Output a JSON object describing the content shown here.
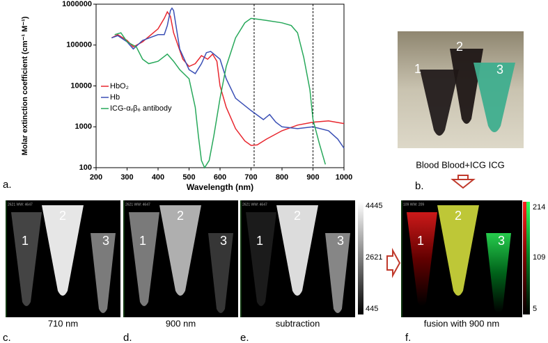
{
  "chart_data": {
    "type": "line",
    "xlabel": "Wavelength (nm)",
    "ylabel": "Molar extinction coefficient (cm⁻¹ M⁻¹)",
    "xlim": [
      200,
      1000
    ],
    "xticks": [
      200,
      300,
      400,
      500,
      600,
      700,
      800,
      900,
      1000
    ],
    "ylim": [
      100,
      1000000
    ],
    "yticks": [
      100,
      1000,
      10000,
      100000,
      1000000
    ],
    "log_y": true,
    "legend": "left",
    "vlines": [
      710,
      900
    ],
    "series": [
      {
        "name": "HbO₂",
        "color": "#e8262e",
        "x": [
          250,
          270,
          300,
          320,
          350,
          400,
          420,
          430,
          440,
          450,
          480,
          500,
          520,
          540,
          560,
          576,
          590,
          600,
          620,
          650,
          680,
          700,
          720,
          750,
          800,
          850,
          900,
          950,
          1000
        ],
        "values": [
          150000,
          180000,
          130000,
          90000,
          120000,
          250000,
          450000,
          650000,
          500000,
          200000,
          45000,
          30000,
          35000,
          55000,
          45000,
          60000,
          40000,
          10000,
          3000,
          900,
          450,
          350,
          360,
          500,
          800,
          1100,
          1300,
          1400,
          1200
        ]
      },
      {
        "name": "Hb",
        "color": "#3a4fb5",
        "x": [
          250,
          270,
          300,
          320,
          350,
          400,
          420,
          430,
          440,
          445,
          450,
          470,
          500,
          520,
          540,
          556,
          570,
          600,
          620,
          650,
          700,
          740,
          760,
          780,
          800,
          850,
          900,
          950,
          980,
          1000
        ],
        "values": [
          150000,
          170000,
          120000,
          80000,
          130000,
          180000,
          180000,
          300000,
          700000,
          800000,
          700000,
          80000,
          25000,
          20000,
          35000,
          65000,
          70000,
          45000,
          15000,
          5000,
          2500,
          1500,
          2000,
          1300,
          1000,
          900,
          1000,
          800,
          500,
          300
        ]
      },
      {
        "name": "ICG-αᵥβ₆ antibody",
        "color": "#27a85a",
        "x": [
          260,
          280,
          300,
          330,
          350,
          370,
          400,
          430,
          450,
          470,
          500,
          520,
          530,
          540,
          550,
          565,
          580,
          600,
          620,
          650,
          680,
          700,
          720,
          750,
          800,
          830,
          850,
          870,
          890,
          900,
          920,
          940
        ],
        "values": [
          180000,
          200000,
          120000,
          90000,
          45000,
          35000,
          40000,
          60000,
          40000,
          25000,
          15000,
          3000,
          600,
          150,
          100,
          150,
          600,
          5000,
          30000,
          150000,
          350000,
          450000,
          430000,
          400000,
          350000,
          300000,
          200000,
          50000,
          8000,
          1500,
          400,
          120
        ]
      }
    ]
  },
  "figure": {
    "panel_labels": [
      "a.",
      "b.",
      "c.",
      "d.",
      "e.",
      "f."
    ],
    "photo": {
      "caption": "Blood Blood+ICG ICG",
      "tube_labels": [
        "1",
        "2",
        "3"
      ]
    },
    "images": [
      {
        "header": "2621 WW: 4647",
        "caption": "710 nm",
        "tube_labels": [
          "1",
          "2",
          "3"
        ]
      },
      {
        "header": "2621 WW: 4647",
        "caption": "900 nm",
        "tube_labels": [
          "1",
          "2",
          "3"
        ]
      },
      {
        "header": "2621 WW: 4647",
        "caption": "subtraction",
        "tube_labels": [
          "1",
          "2",
          "3"
        ]
      },
      {
        "header": "109 WW: 209",
        "caption": "fusion with 900 nm",
        "tube_labels": [
          "1",
          "2",
          "3"
        ]
      }
    ],
    "gray_colorbar": [
      4445,
      2621,
      445
    ],
    "fusion_colorbar": [
      214,
      109,
      5
    ]
  }
}
